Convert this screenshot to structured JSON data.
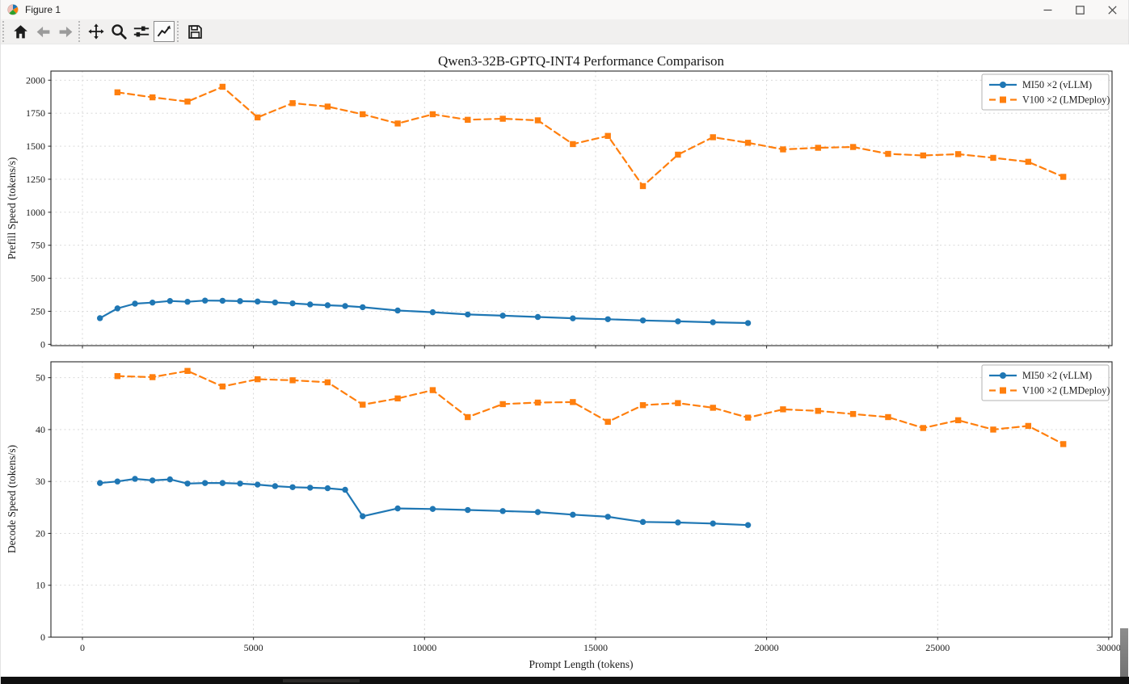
{
  "window": {
    "title": "Figure 1",
    "controls": {
      "minimize": "minimize",
      "maximize": "maximize",
      "close": "close"
    }
  },
  "toolbar": {
    "icons": [
      "home",
      "back",
      "forward",
      "pan",
      "zoom-to-rect",
      "configure-subplots",
      "edit-parameters",
      "save"
    ]
  },
  "figure": {
    "xlabel": "Prompt Length (tokens)",
    "accent_colors": {
      "mi50": "#1f77b4",
      "v100": "#ff7f0e"
    }
  },
  "chart_data": [
    {
      "type": "line",
      "title": "Qwen3-32B-GPTQ-INT4 Performance Comparison",
      "ylabel": "Prefill Speed (tokens/s)",
      "xlabel": "",
      "grid": true,
      "legend_position": "upper right",
      "xlim": [
        -921,
        30097
      ],
      "ylim": [
        -10,
        2069
      ],
      "xticks": [
        0,
        5000,
        10000,
        15000,
        20000,
        25000,
        30000
      ],
      "yticks": [
        0,
        250,
        500,
        750,
        1000,
        1250,
        1500,
        1750,
        2000
      ],
      "show_x_tick_labels": false,
      "series": [
        {
          "name": "MI50 ×2 (vLLM)",
          "color": "#1f77b4",
          "line_style": "solid",
          "marker": "circle",
          "x": [
            512,
            1024,
            1536,
            2048,
            2560,
            3072,
            3584,
            4096,
            4608,
            5120,
            5632,
            6144,
            6656,
            7168,
            7680,
            8192,
            9216,
            10240,
            11264,
            12288,
            13312,
            14336,
            15360,
            16384,
            17408,
            18432,
            19456
          ],
          "y": [
            198,
            272,
            308,
            316,
            328,
            322,
            331,
            330,
            327,
            324,
            317,
            310,
            302,
            296,
            290,
            281,
            256,
            243,
            226,
            217,
            207,
            197,
            190,
            181,
            174,
            167,
            161
          ]
        },
        {
          "name": "V100 ×2 (LMDeploy)",
          "color": "#ff7f0e",
          "line_style": "dashed",
          "marker": "square",
          "x": [
            1024,
            2048,
            3072,
            4096,
            5120,
            6144,
            7168,
            8192,
            9216,
            10240,
            11264,
            12288,
            13312,
            14336,
            15360,
            16384,
            17408,
            18432,
            19456,
            20480,
            21504,
            22528,
            23552,
            24576,
            25600,
            26624,
            27648,
            28672
          ],
          "y": [
            1908,
            1870,
            1838,
            1950,
            1718,
            1826,
            1800,
            1742,
            1672,
            1742,
            1700,
            1708,
            1696,
            1516,
            1578,
            1198,
            1436,
            1568,
            1526,
            1476,
            1488,
            1494,
            1442,
            1430,
            1440,
            1412,
            1382,
            1268
          ]
        }
      ]
    },
    {
      "type": "line",
      "title": "",
      "ylabel": "Decode Speed (tokens/s)",
      "xlabel": "Prompt Length (tokens)",
      "grid": true,
      "legend_position": "upper right",
      "xlim": [
        -921,
        30097
      ],
      "ylim": [
        0,
        53.06
      ],
      "xticks": [
        0,
        5000,
        10000,
        15000,
        20000,
        25000,
        30000
      ],
      "yticks": [
        0,
        10,
        20,
        30,
        40,
        50
      ],
      "show_x_tick_labels": true,
      "series": [
        {
          "name": "MI50 ×2 (vLLM)",
          "color": "#1f77b4",
          "line_style": "solid",
          "marker": "circle",
          "x": [
            512,
            1024,
            1536,
            2048,
            2560,
            3072,
            3584,
            4096,
            4608,
            5120,
            5632,
            6144,
            6656,
            7168,
            7680,
            8192,
            9216,
            10240,
            11264,
            12288,
            13312,
            14336,
            15360,
            16384,
            17408,
            18432,
            19456
          ],
          "y": [
            29.7,
            30.0,
            30.5,
            30.2,
            30.4,
            29.6,
            29.7,
            29.7,
            29.6,
            29.4,
            29.1,
            28.9,
            28.8,
            28.7,
            28.4,
            23.3,
            24.8,
            24.7,
            24.5,
            24.3,
            24.1,
            23.6,
            23.2,
            22.2,
            22.1,
            21.9,
            21.6
          ]
        },
        {
          "name": "V100 ×2 (LMDeploy)",
          "color": "#ff7f0e",
          "line_style": "dashed",
          "marker": "square",
          "x": [
            1024,
            2048,
            3072,
            4096,
            5120,
            6144,
            7168,
            8192,
            9216,
            10240,
            11264,
            12288,
            13312,
            14336,
            15360,
            16384,
            17408,
            18432,
            19456,
            20480,
            21504,
            22528,
            23552,
            24576,
            25600,
            26624,
            27648,
            28672
          ],
          "y": [
            50.3,
            50.1,
            51.3,
            48.3,
            49.7,
            49.5,
            49.1,
            44.8,
            46.0,
            47.6,
            42.4,
            44.9,
            45.2,
            45.3,
            41.5,
            44.7,
            45.1,
            44.2,
            42.3,
            43.9,
            43.6,
            43.0,
            42.4,
            40.3,
            41.8,
            40.0,
            40.7,
            37.2
          ]
        }
      ]
    }
  ]
}
